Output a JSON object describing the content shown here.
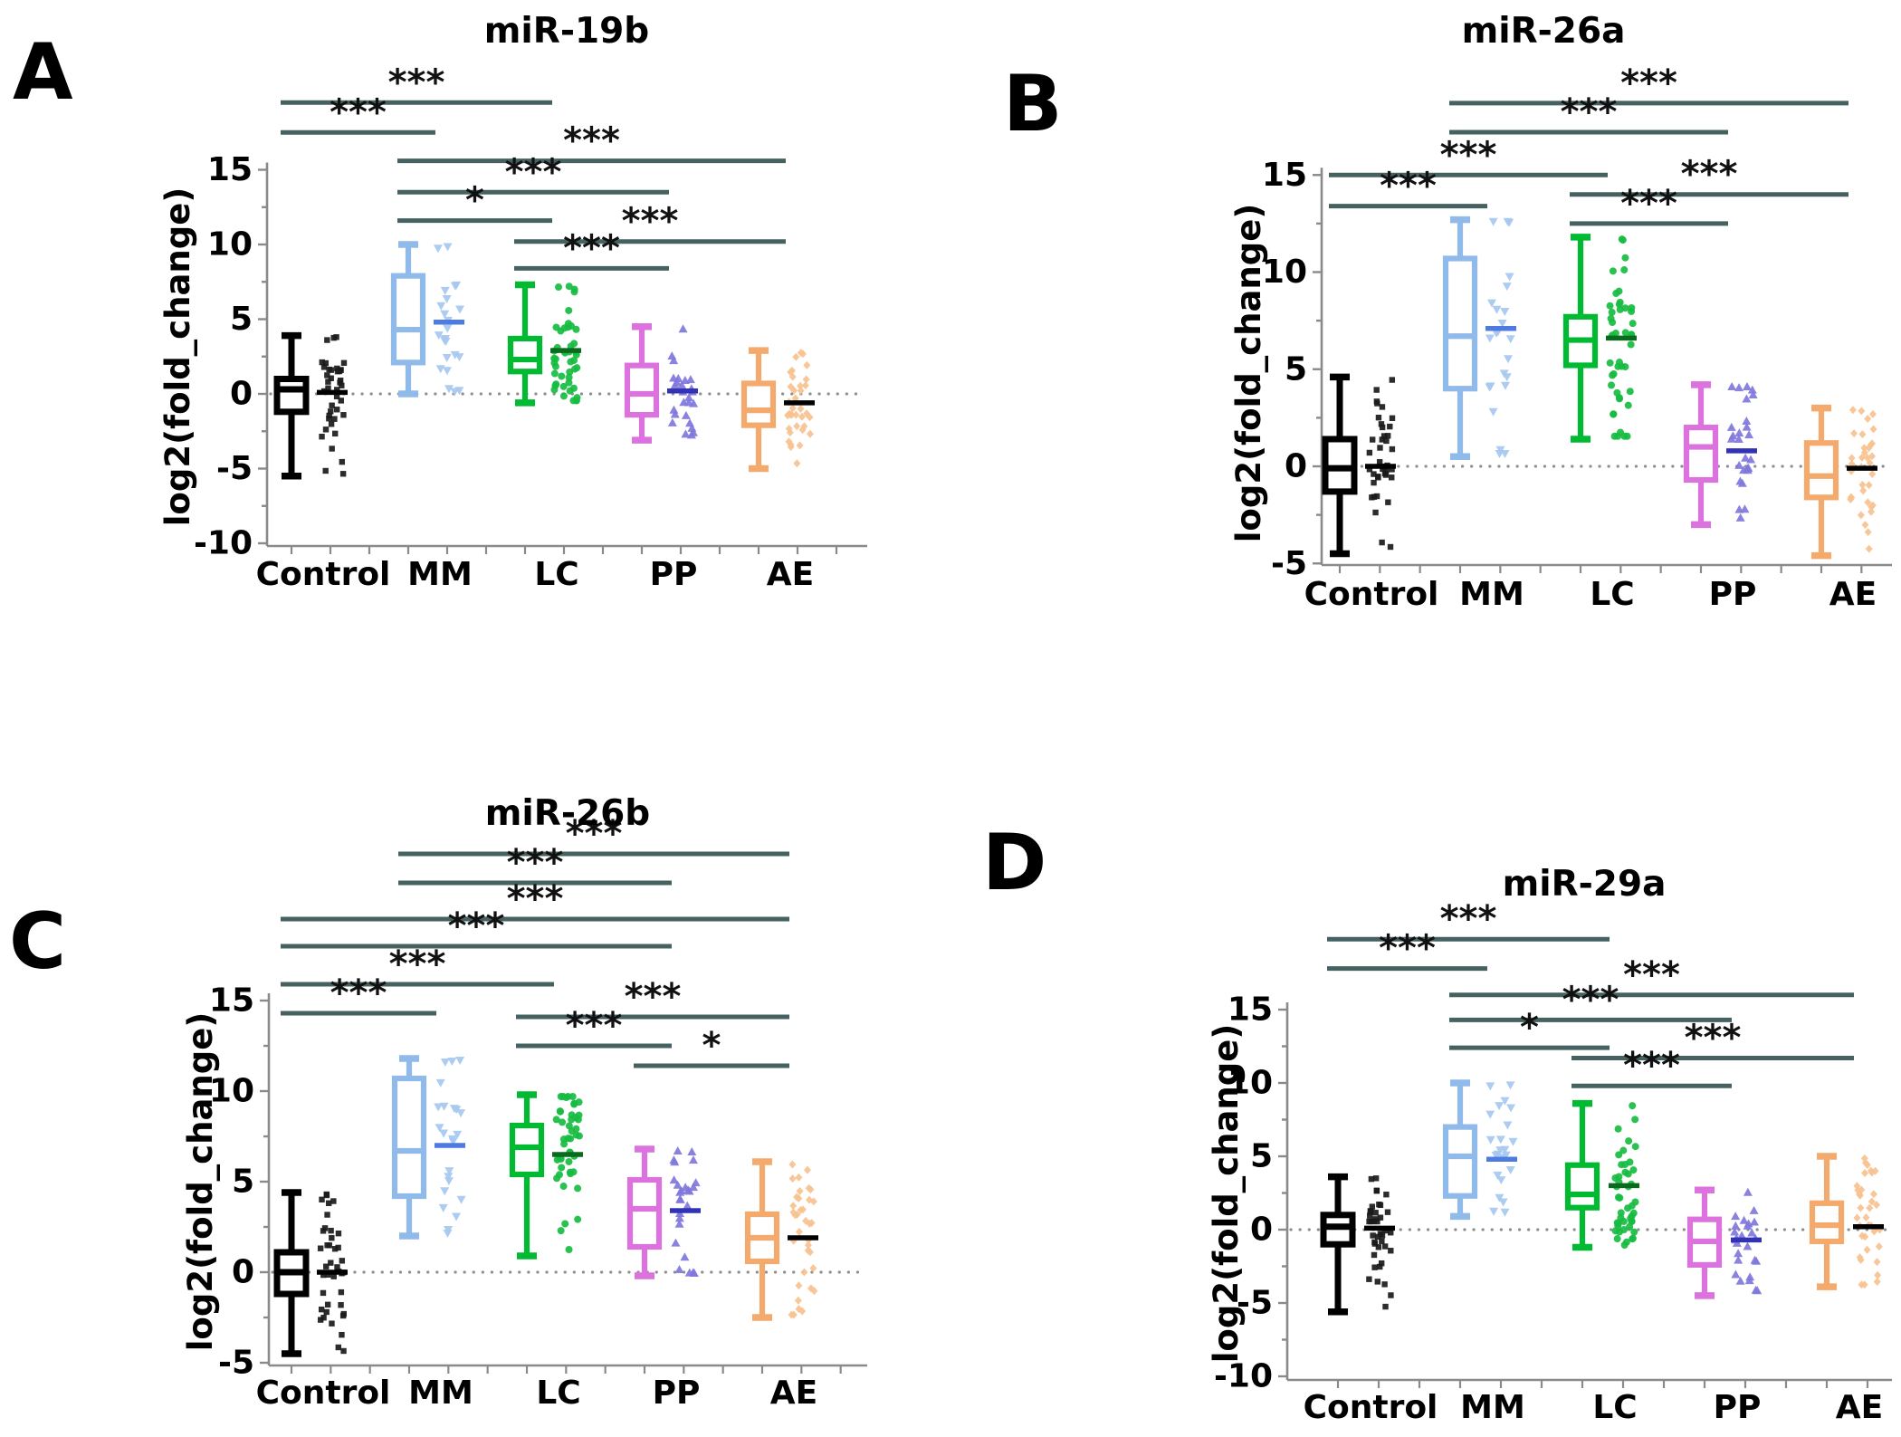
{
  "chart_data": {
    "type": "box",
    "description": "Four-panel box-and-whisker plots with jittered scatter columns of log2(fold_change) per diagnosis group",
    "shared": {
      "categories": [
        "Control",
        "MM",
        "LC",
        "PP",
        "AE"
      ],
      "ylabel": "log2(fold_change)",
      "colors": {
        "sig_line": "#456160",
        "stars": "#111111",
        "zero_dotted_line": "#8f8f8f",
        "axis": "#8a8a8a",
        "text": "#000000",
        "background": "#ffffff"
      }
    },
    "panels": [
      {
        "label": "A",
        "title": "miR-19b",
        "ylabel": "log2(fold_change)",
        "ylim": [
          -10,
          15
        ],
        "y_ticks": [
          -10,
          -5,
          0,
          5,
          10,
          15
        ],
        "groups": [
          {
            "name": "Control",
            "n": 40,
            "marker": "square",
            "box_color": "#000000",
            "marker_color": "#1a1a1a",
            "median_line_color": "#000000",
            "whisker_low": -5.5,
            "q1": -1.2,
            "median": 0.3,
            "q3": 1.0,
            "whisker_high": 3.9,
            "scatter_median": 0.1
          },
          {
            "name": "MM",
            "n": 23,
            "marker": "triangle-down",
            "box_color": "#90BAEA",
            "marker_color": "#A6C8F0",
            "median_line_color": "#4E7BE0",
            "whisker_low": 0.0,
            "q1": 2.1,
            "median": 4.3,
            "q3": 7.9,
            "whisker_high": 10.0,
            "scatter_median": 4.8
          },
          {
            "name": "LC",
            "n": 45,
            "marker": "circle",
            "box_color": "#00BA31",
            "marker_color": "#17BC41",
            "median_line_color": "#0A6B1E",
            "whisker_low": -0.6,
            "q1": 1.5,
            "median": 2.3,
            "q3": 3.7,
            "whisker_high": 7.3,
            "scatter_median": 2.9
          },
          {
            "name": "PP",
            "n": 26,
            "marker": "triangle-up",
            "box_color": "#DB72DD",
            "marker_color": "#8077DC",
            "median_line_color": "#3232B4",
            "whisker_low": -3.1,
            "q1": -1.4,
            "median": 0.0,
            "q3": 1.9,
            "whisker_high": 4.5,
            "scatter_median": 0.2
          },
          {
            "name": "AE",
            "n": 36,
            "marker": "diamond",
            "box_color": "#F4AA6C",
            "marker_color": "#F7C290",
            "median_line_color": "#000000",
            "whisker_low": -5.0,
            "q1": -2.1,
            "median": -1.1,
            "q3": 0.7,
            "whisker_high": 2.9,
            "scatter_median": -0.6
          }
        ],
        "sig_bars": [
          {
            "from": "Control",
            "to": "LC",
            "label": "***",
            "y": 19.5
          },
          {
            "from": "Control",
            "to": "MM",
            "label": "***",
            "y": 17.5
          },
          {
            "from": "MM",
            "to": "AE",
            "label": "***",
            "y": 15.6
          },
          {
            "from": "MM",
            "to": "PP",
            "label": "***",
            "y": 13.5
          },
          {
            "from": "MM",
            "to": "LC",
            "label": "*",
            "y": 11.6
          },
          {
            "from": "LC",
            "to": "AE",
            "label": "***",
            "y": 10.2
          },
          {
            "from": "LC",
            "to": "PP",
            "label": "***",
            "y": 8.4
          }
        ]
      },
      {
        "label": "B",
        "title": "miR-26a",
        "ylabel": "log2(fold_change)",
        "ylim": [
          -5,
          15
        ],
        "y_ticks": [
          -5,
          0,
          5,
          10,
          15
        ],
        "groups": [
          {
            "name": "Control",
            "n": 40,
            "marker": "square",
            "box_color": "#000000",
            "marker_color": "#1a1a1a",
            "median_line_color": "#000000",
            "whisker_low": -4.5,
            "q1": -1.3,
            "median": -0.1,
            "q3": 1.4,
            "whisker_high": 4.6,
            "scatter_median": 0.0
          },
          {
            "name": "MM",
            "n": 23,
            "marker": "triangle-down",
            "box_color": "#90BAEA",
            "marker_color": "#A6C8F0",
            "median_line_color": "#4E7BE0",
            "whisker_low": 0.5,
            "q1": 4.0,
            "median": 6.7,
            "q3": 10.7,
            "whisker_high": 12.7,
            "scatter_median": 7.1
          },
          {
            "name": "LC",
            "n": 45,
            "marker": "circle",
            "box_color": "#00BA31",
            "marker_color": "#17BC41",
            "median_line_color": "#0A6B1E",
            "whisker_low": 1.4,
            "q1": 5.2,
            "median": 6.5,
            "q3": 7.7,
            "whisker_high": 11.8,
            "scatter_median": 6.6
          },
          {
            "name": "PP",
            "n": 26,
            "marker": "triangle-up",
            "box_color": "#DB72DD",
            "marker_color": "#8077DC",
            "median_line_color": "#3232B4",
            "whisker_low": -3.0,
            "q1": -0.7,
            "median": 1.0,
            "q3": 2.0,
            "whisker_high": 4.2,
            "scatter_median": 0.8
          },
          {
            "name": "AE",
            "n": 36,
            "marker": "diamond",
            "box_color": "#F4AA6C",
            "marker_color": "#F7C290",
            "median_line_color": "#000000",
            "whisker_low": -4.6,
            "q1": -1.6,
            "median": -0.5,
            "q3": 1.2,
            "whisker_high": 3.0,
            "scatter_median": -0.1
          }
        ],
        "sig_bars": [
          {
            "from": "MM",
            "to": "AE",
            "label": "***",
            "y": 18.7
          },
          {
            "from": "MM",
            "to": "PP",
            "label": "***",
            "y": 17.2
          },
          {
            "from": "Control",
            "to": "LC",
            "label": "***",
            "y": 15.0
          },
          {
            "from": "LC",
            "to": "AE",
            "label": "***",
            "y": 14.0
          },
          {
            "from": "Control",
            "to": "MM",
            "label": "***",
            "y": 13.4
          },
          {
            "from": "LC",
            "to": "PP",
            "label": "***",
            "y": 12.5
          }
        ]
      },
      {
        "label": "C",
        "title": "miR-26b",
        "ylabel": "log2(fold_change)",
        "ylim": [
          -5,
          15
        ],
        "y_ticks": [
          -5,
          0,
          5,
          10,
          15
        ],
        "groups": [
          {
            "name": "Control",
            "n": 40,
            "marker": "square",
            "box_color": "#000000",
            "marker_color": "#1a1a1a",
            "median_line_color": "#000000",
            "whisker_low": -4.5,
            "q1": -1.2,
            "median": 0.0,
            "q3": 1.1,
            "whisker_high": 4.4,
            "scatter_median": 0.0
          },
          {
            "name": "MM",
            "n": 23,
            "marker": "triangle-down",
            "box_color": "#90BAEA",
            "marker_color": "#A6C8F0",
            "median_line_color": "#4E7BE0",
            "whisker_low": 2.0,
            "q1": 4.2,
            "median": 6.7,
            "q3": 10.7,
            "whisker_high": 11.8,
            "scatter_median": 7.0
          },
          {
            "name": "LC",
            "n": 45,
            "marker": "circle",
            "box_color": "#00BA31",
            "marker_color": "#17BC41",
            "median_line_color": "#0A6B1E",
            "whisker_low": 0.9,
            "q1": 5.4,
            "median": 6.9,
            "q3": 8.1,
            "whisker_high": 9.8,
            "scatter_median": 6.5
          },
          {
            "name": "PP",
            "n": 26,
            "marker": "triangle-up",
            "box_color": "#DB72DD",
            "marker_color": "#8077DC",
            "median_line_color": "#3232B4",
            "whisker_low": -0.2,
            "q1": 1.4,
            "median": 3.5,
            "q3": 5.1,
            "whisker_high": 6.8,
            "scatter_median": 3.4
          },
          {
            "name": "AE",
            "n": 36,
            "marker": "diamond",
            "box_color": "#F4AA6C",
            "marker_color": "#F7C290",
            "median_line_color": "#000000",
            "whisker_low": -2.5,
            "q1": 0.6,
            "median": 1.9,
            "q3": 3.2,
            "whisker_high": 6.1,
            "scatter_median": 1.9
          }
        ],
        "sig_bars": [
          {
            "from": "MM",
            "to": "AE",
            "label": "***",
            "y": 23.1
          },
          {
            "from": "MM",
            "to": "PP",
            "label": "***",
            "y": 21.5
          },
          {
            "from": "Control",
            "to": "AE",
            "label": "***",
            "y": 19.5
          },
          {
            "from": "Control",
            "to": "PP",
            "label": "***",
            "y": 18.0
          },
          {
            "from": "Control",
            "to": "LC",
            "label": "***",
            "y": 15.9
          },
          {
            "from": "Control",
            "to": "MM",
            "label": "***",
            "y": 14.3
          },
          {
            "from": "LC",
            "to": "AE",
            "label": "***",
            "y": 14.1
          },
          {
            "from": "LC",
            "to": "PP",
            "label": "***",
            "y": 12.5
          },
          {
            "from": "PP",
            "to": "AE",
            "label": "*",
            "y": 11.4
          }
        ]
      },
      {
        "label": "D",
        "title": "miR-29a",
        "ylabel": "log2(fold_change)",
        "ylim": [
          -10,
          15
        ],
        "y_ticks": [
          -10,
          -5,
          0,
          5,
          10,
          15
        ],
        "groups": [
          {
            "name": "Control",
            "n": 40,
            "marker": "square",
            "box_color": "#000000",
            "marker_color": "#1a1a1a",
            "median_line_color": "#000000",
            "whisker_low": -5.6,
            "q1": -1.0,
            "median": 0.2,
            "q3": 1.0,
            "whisker_high": 3.6,
            "scatter_median": 0.1
          },
          {
            "name": "MM",
            "n": 23,
            "marker": "triangle-down",
            "box_color": "#90BAEA",
            "marker_color": "#A6C8F0",
            "median_line_color": "#4E7BE0",
            "whisker_low": 0.9,
            "q1": 2.3,
            "median": 5.0,
            "q3": 7.0,
            "whisker_high": 10.0,
            "scatter_median": 4.8
          },
          {
            "name": "LC",
            "n": 45,
            "marker": "circle",
            "box_color": "#00BA31",
            "marker_color": "#17BC41",
            "median_line_color": "#0A6B1E",
            "whisker_low": -1.2,
            "q1": 1.5,
            "median": 2.4,
            "q3": 4.4,
            "whisker_high": 8.6,
            "scatter_median": 3.0
          },
          {
            "name": "PP",
            "n": 26,
            "marker": "triangle-up",
            "box_color": "#DB72DD",
            "marker_color": "#8077DC",
            "median_line_color": "#3232B4",
            "whisker_low": -4.5,
            "q1": -2.4,
            "median": -0.8,
            "q3": 0.7,
            "whisker_high": 2.7,
            "scatter_median": -0.7
          },
          {
            "name": "AE",
            "n": 36,
            "marker": "diamond",
            "box_color": "#F4AA6C",
            "marker_color": "#F7C290",
            "median_line_color": "#000000",
            "whisker_low": -3.9,
            "q1": -0.8,
            "median": 0.3,
            "q3": 1.8,
            "whisker_high": 5.0,
            "scatter_median": 0.2
          }
        ],
        "sig_bars": [
          {
            "from": "Control",
            "to": "LC",
            "label": "***",
            "y": 19.8
          },
          {
            "from": "Control",
            "to": "MM",
            "label": "***",
            "y": 17.8
          },
          {
            "from": "MM",
            "to": "AE",
            "label": "***",
            "y": 16.0
          },
          {
            "from": "MM",
            "to": "PP",
            "label": "***",
            "y": 14.3
          },
          {
            "from": "MM",
            "to": "LC",
            "label": "*",
            "y": 12.4
          },
          {
            "from": "LC",
            "to": "AE",
            "label": "***",
            "y": 11.7
          },
          {
            "from": "LC",
            "to": "PP",
            "label": "***",
            "y": 9.8
          }
        ]
      }
    ]
  }
}
